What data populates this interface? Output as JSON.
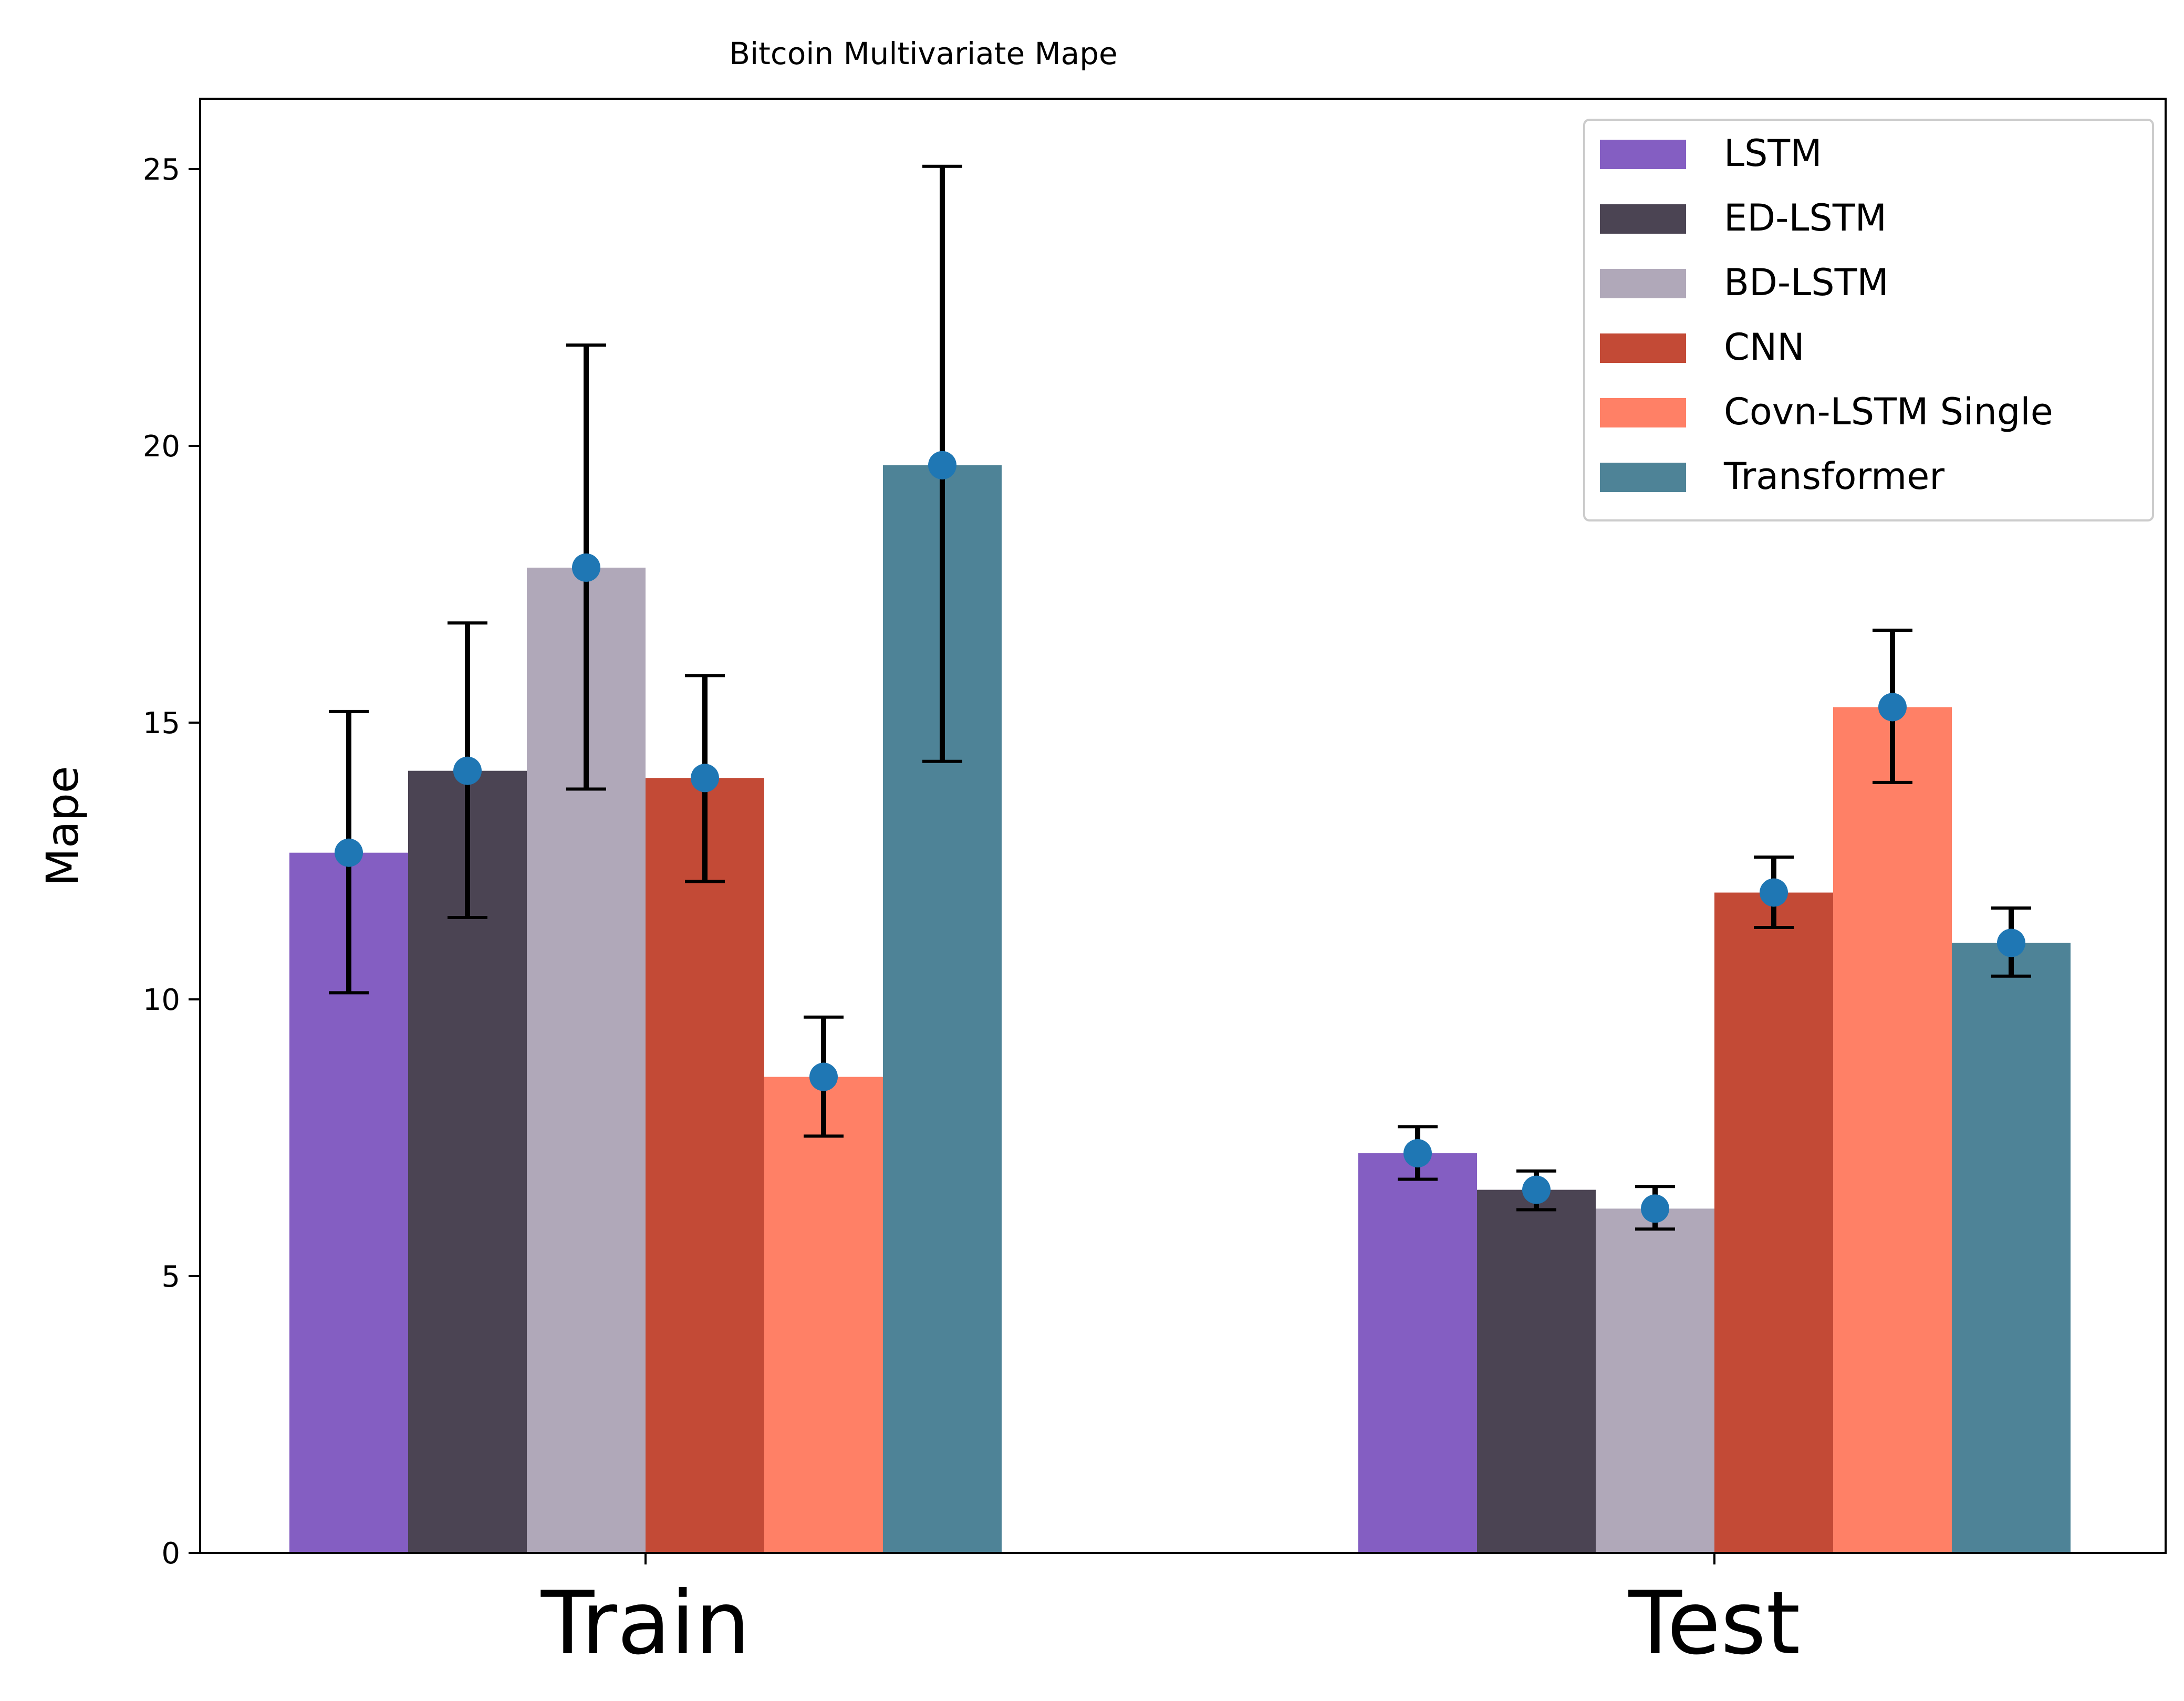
{
  "chart_data": {
    "type": "bar",
    "title": "Bitcoin Multivariate Mape",
    "xlabel": "",
    "ylabel": "Mape",
    "categories": [
      "Train",
      "Test"
    ],
    "ylim": [
      0,
      26.3
    ],
    "yticks": [
      0,
      5,
      10,
      15,
      20,
      25
    ],
    "grid": false,
    "legend_position": "top-right",
    "series": [
      {
        "name": "LSTM",
        "color": "#845EC2",
        "values": [
          12.65,
          7.22
        ],
        "err_low": [
          10.12,
          6.75
        ],
        "err_high": [
          15.2,
          7.7
        ]
      },
      {
        "name": "ED-LSTM",
        "color": "#4B4453",
        "values": [
          14.13,
          6.56
        ],
        "err_low": [
          11.48,
          6.2
        ],
        "err_high": [
          16.8,
          6.9
        ]
      },
      {
        "name": "BD-LSTM",
        "color": "#B0A8B9",
        "values": [
          17.8,
          6.22
        ],
        "err_low": [
          13.8,
          5.85
        ],
        "err_high": [
          21.82,
          6.62
        ]
      },
      {
        "name": "CNN",
        "color": "#C34A36",
        "values": [
          14.0,
          11.93
        ],
        "err_low": [
          12.13,
          11.3
        ],
        "err_high": [
          15.85,
          12.57
        ]
      },
      {
        "name": "Covn-LSTM Single",
        "color": "#FF8066",
        "values": [
          8.6,
          15.28
        ],
        "err_low": [
          7.53,
          13.92
        ],
        "err_high": [
          9.68,
          16.67
        ]
      },
      {
        "name": "Transformer",
        "color": "#4E8397",
        "values": [
          19.65,
          11.02
        ],
        "err_low": [
          14.3,
          10.42
        ],
        "err_high": [
          25.05,
          11.65
        ]
      }
    ],
    "marker_color": "#1F77B4"
  }
}
